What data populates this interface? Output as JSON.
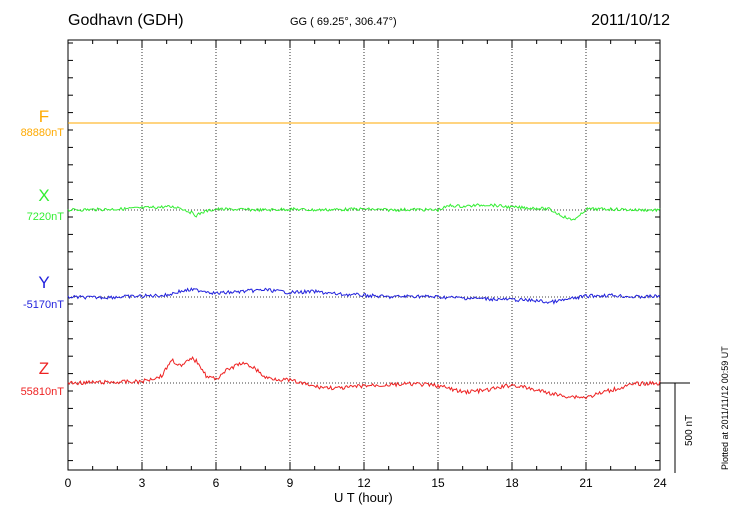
{
  "header": {
    "station": "Godhavn (GDH)",
    "coords": "GG ( 69.25°, 306.47°)",
    "date": "2011/10/12"
  },
  "footer": {
    "plotted": "Plotted at 2011/11/12 00:59 UT"
  },
  "chart_data": {
    "type": "line",
    "xlabel": "U T (hour)",
    "xlim": [
      0,
      24
    ],
    "xticks": [
      "0",
      "3",
      "6",
      "9",
      "12",
      "15",
      "18",
      "21",
      "24"
    ],
    "grid": true,
    "scale_bar": {
      "label": "500 nT",
      "nT": 500
    },
    "series": [
      {
        "name": "F",
        "baseline_label": "88880nT",
        "color": "#ffaa00",
        "x": [
          0,
          24
        ],
        "y": [
          0,
          0
        ]
      },
      {
        "name": "X",
        "baseline_label": "7220nT",
        "color": "#33ee33",
        "x": [
          0,
          2,
          4,
          4.5,
          5,
          5.2,
          5.5,
          6,
          8,
          9,
          10,
          11,
          12,
          13,
          14,
          15,
          15.5,
          16,
          17,
          18,
          19,
          19.5,
          20,
          20.4,
          20.7,
          21,
          22,
          23,
          24
        ],
        "y": [
          0,
          5,
          18,
          15,
          -15,
          -30,
          -10,
          5,
          0,
          5,
          0,
          3,
          5,
          0,
          3,
          0,
          25,
          20,
          30,
          15,
          10,
          5,
          -30,
          -55,
          -40,
          5,
          5,
          0,
          0
        ]
      },
      {
        "name": "Y",
        "baseline_label": "-5170nT",
        "color": "#2222dd",
        "x": [
          0,
          1,
          2,
          3,
          4,
          4.5,
          5,
          5.5,
          6,
          7,
          8,
          9,
          10,
          11,
          12,
          13,
          14,
          15,
          16,
          17,
          18,
          19,
          19.5,
          20,
          21,
          22,
          23,
          24
        ],
        "y": [
          0,
          -3,
          0,
          5,
          10,
          30,
          40,
          35,
          20,
          30,
          40,
          25,
          30,
          15,
          10,
          0,
          5,
          0,
          -5,
          -10,
          -15,
          -20,
          -30,
          -20,
          5,
          10,
          0,
          5
        ]
      },
      {
        "name": "Z",
        "baseline_label": "55810nT",
        "color": "#ee2222",
        "x": [
          0,
          2,
          3,
          3.8,
          4.2,
          4.6,
          5,
          5.3,
          5.6,
          6,
          6.3,
          7,
          7.5,
          8,
          9,
          10,
          11,
          12,
          13,
          14,
          15,
          16,
          17,
          18,
          19,
          20,
          21,
          22,
          23,
          24
        ],
        "y": [
          0,
          5,
          8,
          40,
          130,
          90,
          140,
          110,
          40,
          20,
          60,
          110,
          90,
          30,
          15,
          -20,
          -30,
          -15,
          -10,
          -5,
          -15,
          -50,
          -40,
          -10,
          -40,
          -70,
          -80,
          -40,
          -5,
          0
        ]
      }
    ]
  }
}
